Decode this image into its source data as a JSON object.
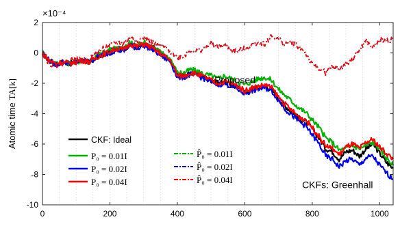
{
  "chart_data": {
    "type": "line",
    "exponent_label": "×10⁻⁴",
    "ylabel_text": "Atomic time",
    "ylabel_math": "TA[k]",
    "xlim": [
      0,
      1040
    ],
    "ylim": [
      -10,
      2
    ],
    "xticks": [
      "0",
      "200",
      "400",
      "600",
      "800",
      "1000"
    ],
    "yticks": [
      "2",
      "0",
      "-2",
      "-4",
      "-6",
      "-8",
      "-10"
    ],
    "grid": "x-dotted",
    "legend_position": "lower-left",
    "annotations": [
      {
        "text": "Proposed"
      },
      {
        "text": "CKFs: Greenhall"
      }
    ],
    "legend": [
      {
        "label": "CKF: Ideal",
        "color": "#000000",
        "dash": "solid"
      },
      {
        "label": "P₀ = 0.01I",
        "color": "#00b000",
        "dash": "solid"
      },
      {
        "label": "P₀ = 0.02I",
        "color": "#0000e6",
        "dash": "solid"
      },
      {
        "label": "P₀ = 0.04I",
        "color": "#ff0000",
        "dash": "solid"
      },
      {
        "label": "P̂₀ = 0.01I",
        "color": "#00b000",
        "dash": "dashdot"
      },
      {
        "label": "P̂₀ = 0.02I",
        "color": "#0000e6",
        "dash": "dashdot"
      },
      {
        "label": "P̂₀ = 0.04I",
        "color": "#ff0000",
        "dash": "dashdot"
      }
    ],
    "x": [
      0,
      20,
      40,
      60,
      80,
      100,
      120,
      140,
      160,
      180,
      200,
      220,
      240,
      260,
      280,
      300,
      320,
      340,
      360,
      380,
      400,
      420,
      440,
      460,
      480,
      500,
      520,
      540,
      560,
      580,
      600,
      620,
      640,
      660,
      680,
      700,
      720,
      740,
      760,
      780,
      800,
      820,
      840,
      860,
      880,
      900,
      920,
      940,
      960,
      980,
      1000,
      1020,
      1040
    ],
    "series": [
      {
        "name": "CKF: Ideal",
        "color": "#000000",
        "dash": "solid",
        "values": [
          0,
          -0.5,
          -0.7,
          -0.6,
          -0.7,
          -0.6,
          -0.5,
          -0.6,
          -0.3,
          -0.1,
          0.1,
          0.3,
          0.2,
          0.6,
          0.4,
          0.6,
          0.4,
          0.2,
          -0.2,
          -0.5,
          -1.5,
          -1.5,
          -1.3,
          -1.4,
          -1.6,
          -1.8,
          -2.0,
          -1.9,
          -2.1,
          -2.3,
          -2.6,
          -2.4,
          -2.3,
          -2.2,
          -2.4,
          -3.0,
          -3.5,
          -3.9,
          -4.3,
          -4.5,
          -5.0,
          -5.6,
          -6.3,
          -6.5,
          -7.0,
          -6.5,
          -6.4,
          -6.8,
          -6.3,
          -6.0,
          -6.6,
          -7.2,
          -7.6
        ]
      },
      {
        "name": "P₀ = 0.01I",
        "color": "#00b000",
        "dash": "solid",
        "values": [
          0,
          -0.5,
          -0.7,
          -0.6,
          -0.7,
          -0.6,
          -0.5,
          -0.6,
          -0.2,
          0.0,
          0.2,
          0.4,
          0.3,
          0.7,
          0.5,
          0.7,
          0.5,
          0.2,
          -0.1,
          -0.4,
          -1.3,
          -1.3,
          -1.1,
          -1.2,
          -1.4,
          -1.5,
          -1.7,
          -1.5,
          -1.7,
          -1.9,
          -2.1,
          -1.9,
          -1.7,
          -1.6,
          -1.8,
          -2.4,
          -2.8,
          -3.2,
          -3.6,
          -3.9,
          -4.4,
          -4.9,
          -5.6,
          -5.9,
          -6.4,
          -6.3,
          -6.1,
          -6.3,
          -6.1,
          -5.9,
          -6.3,
          -6.9,
          -7.4
        ]
      },
      {
        "name": "P₀ = 0.02I",
        "color": "#0000e6",
        "dash": "solid",
        "values": [
          0,
          -0.5,
          -0.8,
          -0.6,
          -0.7,
          -0.6,
          -0.5,
          -0.6,
          -0.3,
          -0.1,
          0.0,
          0.2,
          0.1,
          0.5,
          0.3,
          0.5,
          0.3,
          0.0,
          -0.3,
          -0.6,
          -1.6,
          -1.6,
          -1.4,
          -1.5,
          -1.7,
          -1.9,
          -2.1,
          -2.0,
          -2.2,
          -2.4,
          -2.7,
          -2.5,
          -2.4,
          -2.3,
          -2.5,
          -3.1,
          -3.7,
          -4.1,
          -4.5,
          -4.8,
          -5.4,
          -6.0,
          -6.8,
          -7.0,
          -7.5,
          -7.1,
          -7.0,
          -7.4,
          -6.9,
          -6.8,
          -7.4,
          -7.9,
          -8.3
        ]
      },
      {
        "name": "P₀ = 0.04I",
        "color": "#ff0000",
        "dash": "solid",
        "values": [
          0,
          -0.5,
          -0.7,
          -0.6,
          -0.7,
          -0.6,
          -0.5,
          -0.6,
          -0.3,
          -0.1,
          0.1,
          0.3,
          0.2,
          0.6,
          0.4,
          0.6,
          0.4,
          0.1,
          -0.2,
          -0.5,
          -1.5,
          -1.5,
          -1.3,
          -1.4,
          -1.6,
          -1.8,
          -2.0,
          -1.9,
          -2.0,
          -2.2,
          -2.5,
          -2.3,
          -2.2,
          -2.1,
          -2.3,
          -2.9,
          -3.4,
          -3.8,
          -4.2,
          -4.4,
          -4.9,
          -5.5,
          -6.1,
          -6.3,
          -6.7,
          -6.2,
          -6.0,
          -6.3,
          -5.9,
          -5.7,
          -6.2,
          -6.6,
          -7.0
        ]
      },
      {
        "name": "P̂₀ = 0.01I",
        "color": "#00b000",
        "dash": "dashdot",
        "values": [
          0,
          -0.7,
          -0.8,
          -0.7,
          -0.5,
          -0.4,
          -0.5,
          -0.4,
          0.0,
          0.3,
          0.5,
          0.7,
          0.6,
          1.0,
          0.8,
          1.0,
          0.8,
          0.5,
          0.4,
          0.1,
          -0.3,
          -0.2,
          0.2,
          0.1,
          0.3,
          0.6,
          0.4,
          0.5,
          0.2,
          0.1,
          0.3,
          0.5,
          0.7,
          0.6,
          1.1,
          0.9,
          0.6,
          0.7,
          0.4,
          0.0,
          -0.8,
          -1.0,
          -1.3,
          -0.9,
          -1.1,
          -0.7,
          -0.4,
          0.2,
          0.8,
          0.3,
          0.9,
          0.8,
          0.9
        ]
      },
      {
        "name": "P̂₀ = 0.02I",
        "color": "#0000e6",
        "dash": "dashdot",
        "values": [
          0,
          -0.7,
          -0.8,
          -0.7,
          -0.5,
          -0.4,
          -0.5,
          -0.4,
          0.0,
          0.3,
          0.5,
          0.7,
          0.6,
          1.0,
          0.8,
          1.0,
          0.8,
          0.5,
          0.4,
          0.1,
          -0.3,
          -0.2,
          0.2,
          0.1,
          0.3,
          0.6,
          0.4,
          0.5,
          0.2,
          0.1,
          0.3,
          0.5,
          0.7,
          0.6,
          1.1,
          0.9,
          0.6,
          0.7,
          0.4,
          0.0,
          -0.8,
          -1.0,
          -1.3,
          -0.9,
          -1.1,
          -0.7,
          -0.4,
          0.2,
          0.8,
          0.3,
          0.9,
          0.8,
          0.9
        ]
      },
      {
        "name": "P̂₀ = 0.04I",
        "color": "#ff0000",
        "dash": "dashdot",
        "values": [
          0,
          -0.7,
          -0.8,
          -0.7,
          -0.5,
          -0.4,
          -0.5,
          -0.4,
          0.0,
          0.3,
          0.5,
          0.7,
          0.6,
          1.0,
          0.8,
          1.0,
          0.8,
          0.5,
          0.4,
          0.1,
          -0.3,
          -0.2,
          0.2,
          0.1,
          0.3,
          0.6,
          0.4,
          0.5,
          0.2,
          0.1,
          0.3,
          0.5,
          0.7,
          0.6,
          1.1,
          0.9,
          0.6,
          0.7,
          0.4,
          0.0,
          -0.8,
          -1.0,
          -1.3,
          -0.9,
          -1.1,
          -0.7,
          -0.4,
          0.2,
          0.8,
          0.3,
          0.9,
          0.8,
          0.9
        ]
      }
    ]
  }
}
